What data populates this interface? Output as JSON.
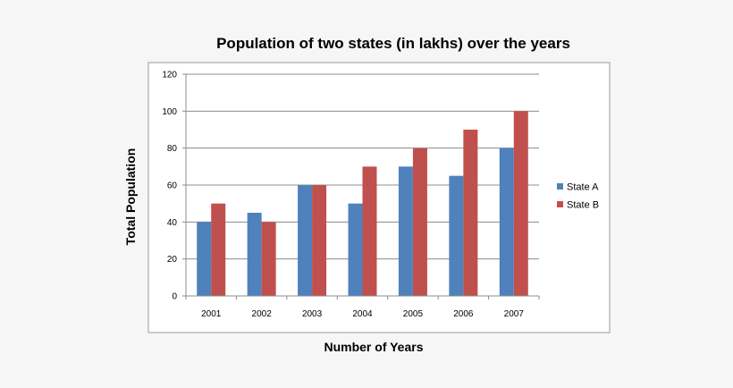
{
  "chart_data": {
    "type": "bar",
    "title": "Population of two states (in lakhs) over the years",
    "xlabel": "Number of Years",
    "ylabel": "Total Population",
    "categories": [
      "2001",
      "2002",
      "2003",
      "2004",
      "2005",
      "2006",
      "2007"
    ],
    "series": [
      {
        "name": "State A",
        "values": [
          40,
          45,
          60,
          50,
          70,
          65,
          80
        ],
        "color": "#4f81bd"
      },
      {
        "name": "State B",
        "values": [
          50,
          40,
          60,
          70,
          80,
          90,
          100
        ],
        "color": "#c0504d"
      }
    ],
    "ylim": [
      0,
      120
    ],
    "yticks": [
      "0",
      "20",
      "40",
      "60",
      "80",
      "100",
      "120"
    ],
    "grid": true,
    "legend": "right"
  }
}
